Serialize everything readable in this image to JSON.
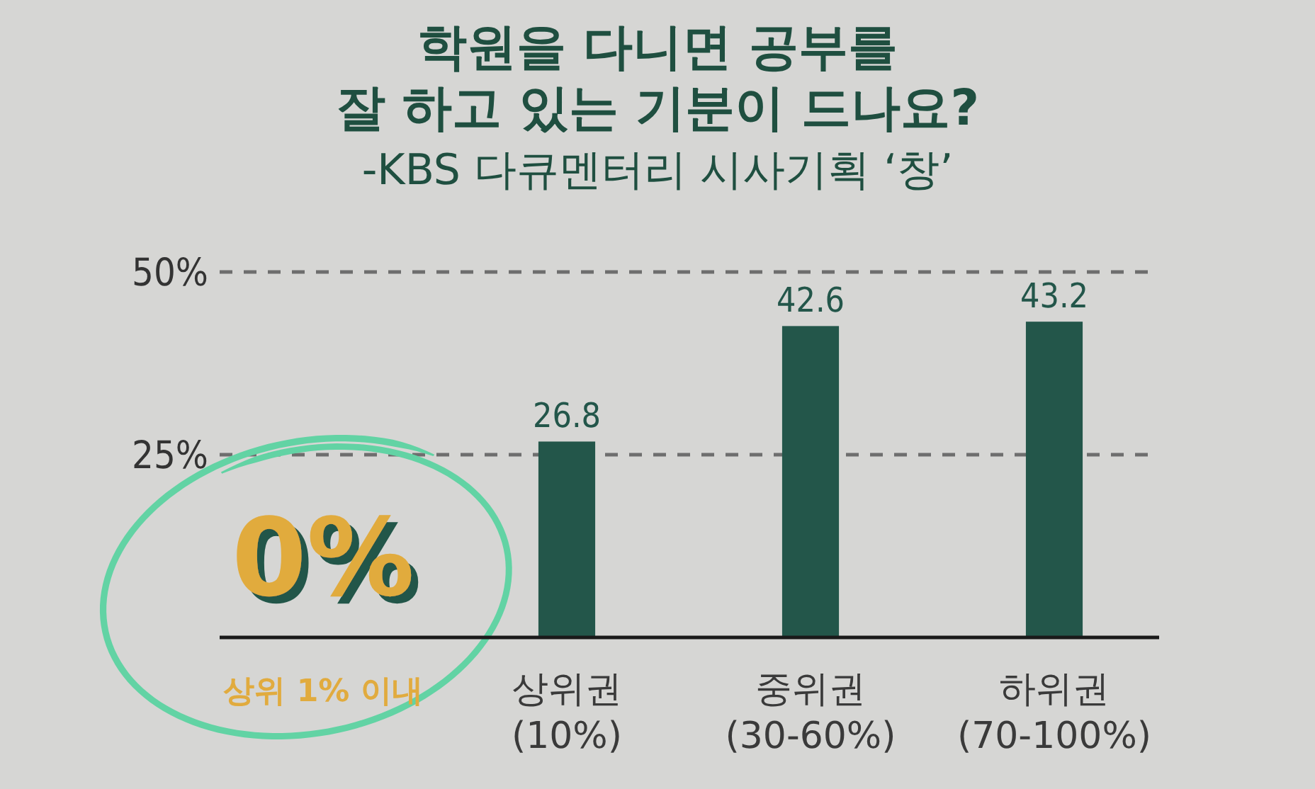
{
  "chart_data": {
    "type": "bar",
    "title": "학원을 다니면 공부를\n잘 하고 있는 기분이 드나요?",
    "subtitle": "-KBS 다큐멘터리 시사기획 ‘창’",
    "categories": [
      "상위 1% 이내",
      "상위권\n(10%)",
      "중위권\n(30-60%)",
      "하위권\n(70-100%)"
    ],
    "values": [
      0,
      26.8,
      42.6,
      43.2
    ],
    "colors": [
      "#e1ab3e",
      "#23564a",
      "#23564a",
      "#23564a"
    ],
    "value_labels": [
      "0%",
      "26.8",
      "42.6",
      "43.2"
    ],
    "ylim": [
      0,
      50
    ],
    "yticks": [
      {
        "value": 25,
        "label": "25%"
      },
      {
        "value": 50,
        "label": "50%"
      }
    ],
    "grid": "y"
  }
}
